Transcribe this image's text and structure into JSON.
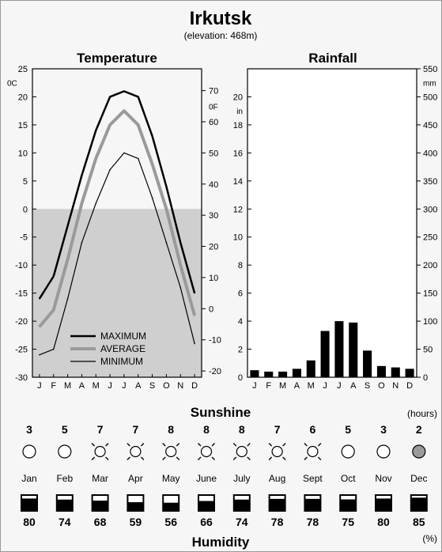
{
  "title": "Irkutsk",
  "subtitle": "(elevation: 468m)",
  "chart_data": [
    {
      "type": "line",
      "title": "Temperature",
      "x": [
        "J",
        "F",
        "M",
        "A",
        "M",
        "J",
        "J",
        "A",
        "S",
        "O",
        "N",
        "D"
      ],
      "y_left_unit": "0C",
      "y_right_unit": "0F",
      "ylim": [
        -30,
        25
      ],
      "ylim_right": [
        -20,
        75
      ],
      "y_left_ticks": [
        25,
        20,
        15,
        10,
        5,
        0,
        -5,
        -10,
        -15,
        -20,
        -25,
        -30
      ],
      "y_right_ticks": [
        70,
        60,
        50,
        40,
        30,
        20,
        10,
        0,
        -10,
        -20
      ],
      "shade_below": 0,
      "legend": "bottom-left",
      "series": [
        {
          "name": "MAXIMUM",
          "values": [
            -16,
            -12,
            -3,
            6,
            14,
            20,
            21,
            20,
            13,
            4,
            -6,
            -15
          ],
          "color": "#000000",
          "width": 2.5
        },
        {
          "name": "AVERAGE",
          "values": [
            -21,
            -18,
            -9,
            1,
            9,
            15,
            17.5,
            15,
            8,
            0,
            -10,
            -19
          ],
          "color": "#9a9a9a",
          "width": 4
        },
        {
          "name": "MINIMUM",
          "values": [
            -26,
            -25,
            -16,
            -6,
            1,
            7,
            10,
            9,
            2,
            -6,
            -14,
            -24
          ],
          "color": "#000000",
          "width": 1.2
        }
      ]
    },
    {
      "type": "bar",
      "title": "Rainfall",
      "categories": [
        "J",
        "F",
        "M",
        "A",
        "M",
        "J",
        "J",
        "A",
        "S",
        "O",
        "N",
        "D"
      ],
      "values_in": [
        0.5,
        0.4,
        0.4,
        0.6,
        1.2,
        3.3,
        4.0,
        3.9,
        1.9,
        0.8,
        0.7,
        0.6
      ],
      "y_left_unit": "in",
      "y_right_unit": "mm",
      "ylim_in": [
        0,
        22
      ],
      "ylim_mm": [
        0,
        550
      ],
      "y_left_ticks": [
        20,
        18,
        16,
        14,
        12,
        10,
        8,
        6,
        4,
        2,
        0
      ],
      "y_right_ticks": [
        550,
        500,
        450,
        400,
        350,
        300,
        250,
        200,
        150,
        100,
        50,
        0
      ]
    }
  ],
  "sunshine": {
    "title": "Sunshine",
    "unit": "(hours)",
    "hours": [
      3,
      5,
      7,
      7,
      8,
      8,
      8,
      7,
      6,
      5,
      3,
      2
    ],
    "icons": [
      "circle-icon",
      "circle-icon",
      "sun-icon",
      "sun-icon",
      "sun-icon",
      "sun-icon",
      "sun-icon",
      "sun-icon",
      "sun-icon",
      "circle-icon",
      "circle-icon",
      "dark-circle-icon"
    ]
  },
  "months": [
    "Jan",
    "Feb",
    "Mar",
    "Apr",
    "May",
    "June",
    "July",
    "Aug",
    "Sept",
    "Oct",
    "Nov",
    "Dec"
  ],
  "humidity": {
    "title": "Humidity",
    "unit": "(%)",
    "values": [
      80,
      74,
      68,
      59,
      56,
      66,
      74,
      78,
      78,
      75,
      80,
      85
    ]
  }
}
